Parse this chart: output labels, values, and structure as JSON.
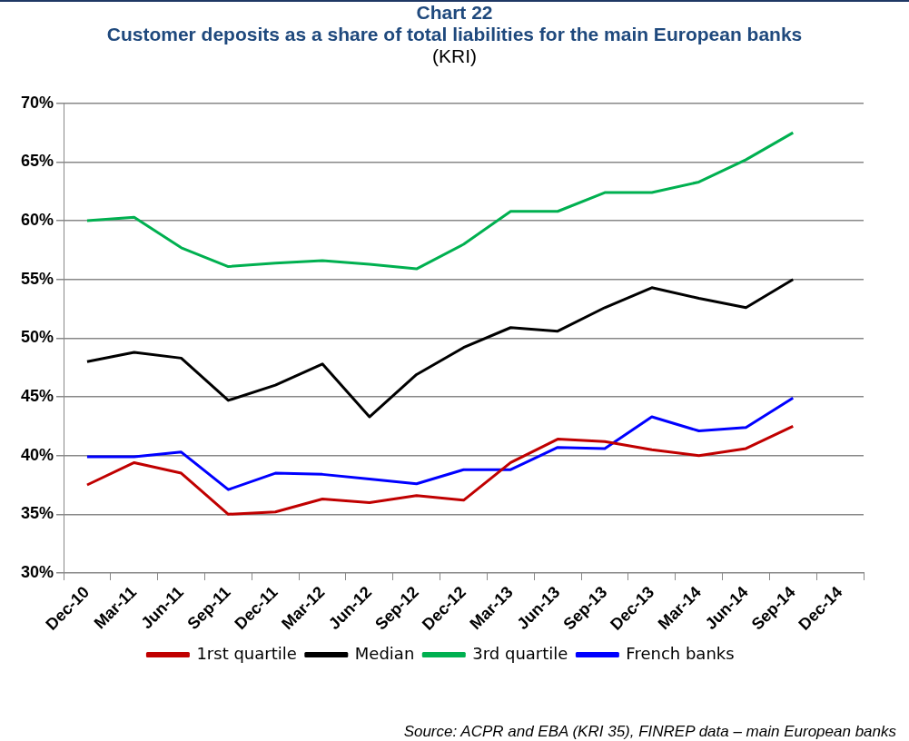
{
  "chart_data": {
    "type": "line",
    "title": "Chart 22",
    "subtitle": "Customer deposits as a share of total liabilities for the main European banks",
    "annotations": [
      "(KRI)",
      "Source: ACPR and EBA (KRI 35), FINREP data – main European banks"
    ],
    "categories": [
      "Dec-10",
      "Mar-11",
      "Jun-11",
      "Sep-11",
      "Dec-11",
      "Mar-12",
      "Jun-12",
      "Sep-12",
      "Dec-12",
      "Mar-13",
      "Jun-13",
      "Sep-13",
      "Dec-13",
      "Mar-14",
      "Jun-14",
      "Sep-14",
      "Dec-14"
    ],
    "series": [
      {
        "name": "1rst quartile",
        "color": "#c00000",
        "values": [
          37.5,
          39.4,
          38.5,
          35.0,
          35.2,
          36.3,
          36.0,
          36.6,
          36.2,
          39.4,
          41.4,
          41.2,
          40.5,
          40.0,
          40.6,
          42.5,
          null
        ]
      },
      {
        "name": "Median",
        "color": "#000000",
        "values": [
          48.0,
          48.8,
          48.3,
          44.7,
          46.0,
          47.8,
          43.3,
          46.9,
          49.2,
          50.9,
          50.6,
          52.6,
          54.3,
          53.4,
          52.6,
          55.0,
          null
        ]
      },
      {
        "name": "3rd quartile",
        "color": "#00b050",
        "values": [
          60.0,
          60.3,
          57.7,
          56.1,
          56.4,
          56.6,
          56.3,
          55.9,
          58.0,
          60.8,
          60.8,
          62.4,
          62.4,
          63.3,
          65.2,
          67.5,
          null
        ]
      },
      {
        "name": "French banks",
        "color": "#0000ff",
        "values": [
          39.9,
          39.9,
          40.3,
          37.1,
          38.5,
          38.4,
          38.0,
          37.6,
          38.8,
          38.8,
          40.7,
          40.6,
          43.3,
          42.1,
          42.4,
          44.9,
          null
        ]
      }
    ],
    "ylim": [
      30,
      70
    ],
    "yticks": [
      {
        "value": 30,
        "label": "30%"
      },
      {
        "value": 35,
        "label": "35%"
      },
      {
        "value": 40,
        "label": "40%"
      },
      {
        "value": 45,
        "label": "45%"
      },
      {
        "value": 50,
        "label": "50%"
      },
      {
        "value": 55,
        "label": "55%"
      },
      {
        "value": 60,
        "label": "60%"
      },
      {
        "value": 65,
        "label": "65%"
      },
      {
        "value": 70,
        "label": "70%"
      }
    ],
    "grid": "y",
    "legend": "bottom",
    "marker": "none",
    "line_style": "solid"
  }
}
